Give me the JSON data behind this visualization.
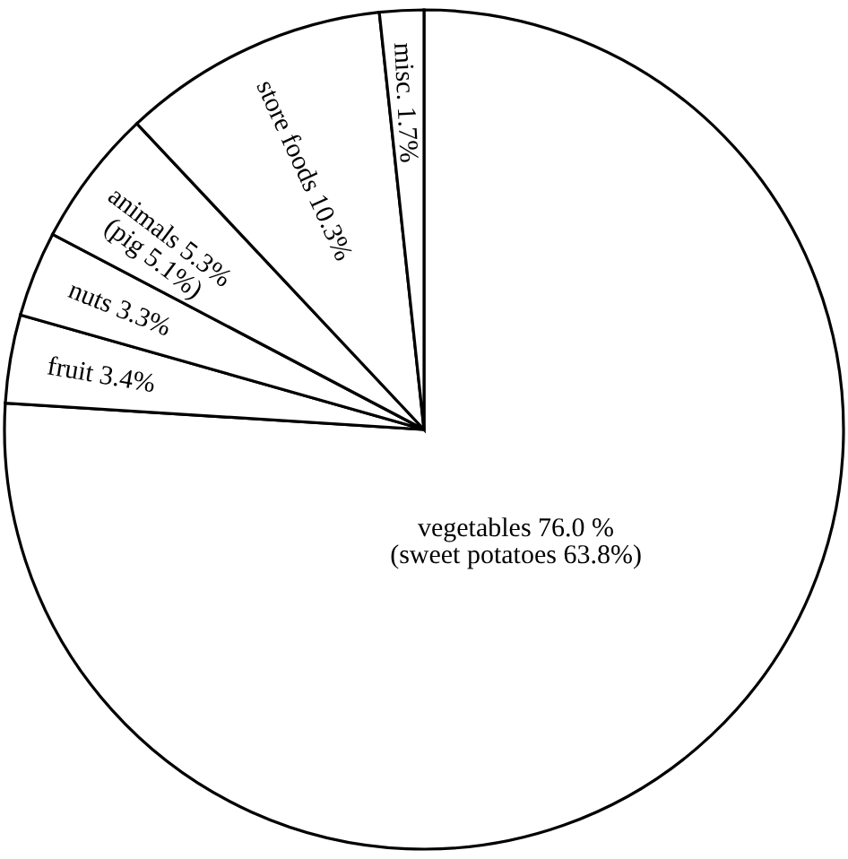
{
  "chart_data": {
    "type": "pie",
    "categories": [
      "vegetables",
      "fruit",
      "nuts",
      "animals",
      "store foods",
      "misc."
    ],
    "values": [
      76.0,
      3.4,
      3.3,
      5.3,
      10.3,
      1.7
    ],
    "value_labels": [
      "76.0 %",
      "3.4%",
      "3.3%",
      "5.3%",
      "10.3%",
      "1.7%"
    ],
    "colors": [
      "#ffffff",
      "#ffffff",
      "#ffffff",
      "#ffffff",
      "#ffffff",
      "#ffffff"
    ],
    "annotations": [
      "(sweet potatoes 63.8%)",
      "(pig 5.1%)"
    ]
  }
}
